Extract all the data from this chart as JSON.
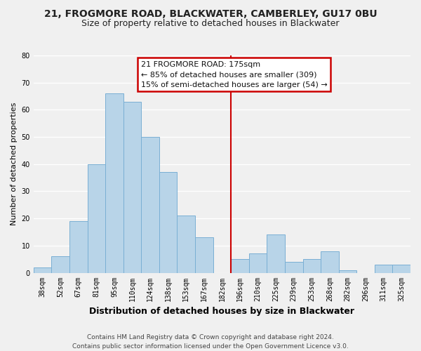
{
  "title": "21, FROGMORE ROAD, BLACKWATER, CAMBERLEY, GU17 0BU",
  "subtitle": "Size of property relative to detached houses in Blackwater",
  "xlabel": "Distribution of detached houses by size in Blackwater",
  "ylabel": "Number of detached properties",
  "bar_labels": [
    "38sqm",
    "52sqm",
    "67sqm",
    "81sqm",
    "95sqm",
    "110sqm",
    "124sqm",
    "138sqm",
    "153sqm",
    "167sqm",
    "182sqm",
    "196sqm",
    "210sqm",
    "225sqm",
    "239sqm",
    "253sqm",
    "268sqm",
    "282sqm",
    "296sqm",
    "311sqm",
    "325sqm"
  ],
  "bar_values": [
    2,
    6,
    19,
    40,
    66,
    63,
    50,
    37,
    21,
    13,
    0,
    5,
    7,
    14,
    4,
    5,
    8,
    1,
    0,
    3,
    3
  ],
  "bar_color": "#b8d4e8",
  "bar_edge_color": "#7aafd4",
  "vline_color": "#cc0000",
  "annotation_text_line1": "21 FROGMORE ROAD: 175sqm",
  "annotation_text_line2": "← 85% of detached houses are smaller (309)",
  "annotation_text_line3": "15% of semi-detached houses are larger (54) →",
  "footer_text": "Contains HM Land Registry data © Crown copyright and database right 2024.\nContains public sector information licensed under the Open Government Licence v3.0.",
  "ylim": [
    0,
    80
  ],
  "background_color": "#f0f0f0",
  "grid_color": "#ffffff",
  "title_fontsize": 10,
  "subtitle_fontsize": 9,
  "xlabel_fontsize": 9,
  "ylabel_fontsize": 8,
  "tick_fontsize": 7,
  "annotation_fontsize": 8,
  "footer_fontsize": 6.5,
  "vline_index": 10.5
}
